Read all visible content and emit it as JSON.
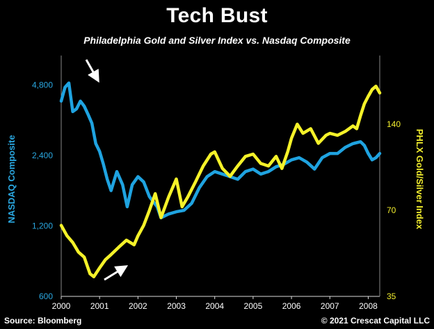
{
  "chart_data": {
    "type": "line",
    "title": "Tech Bust",
    "subtitle": "Philadelphia Gold and Silver Index vs. Nasdaq Composite",
    "x_ticks": [
      "2000",
      "2001",
      "2002",
      "2003",
      "2004",
      "2005",
      "2006",
      "2007",
      "2008"
    ],
    "xlim": [
      2000.0,
      2008.3
    ],
    "y_left": {
      "label": "NASDAQ Composite",
      "ticks": [
        "600",
        "1,200",
        "2,400",
        "4,800"
      ],
      "tick_values": [
        600,
        1200,
        2400,
        4800
      ],
      "scale": "log",
      "lim": [
        600,
        6000
      ]
    },
    "y_right": {
      "label": "PHLX Gold/Silver Index",
      "ticks": [
        "35",
        "70",
        "140"
      ],
      "tick_values": [
        35,
        70,
        140
      ],
      "scale": "log",
      "lim": [
        35,
        230
      ]
    },
    "series": [
      {
        "name": "NASDAQ Composite",
        "axis": "left",
        "color": "#1fa3e0",
        "x": [
          2000.0,
          2000.1,
          2000.2,
          2000.3,
          2000.4,
          2000.5,
          2000.6,
          2000.7,
          2000.8,
          2000.9,
          2001.0,
          2001.1,
          2001.2,
          2001.3,
          2001.45,
          2001.6,
          2001.72,
          2001.85,
          2002.0,
          2002.15,
          2002.3,
          2002.5,
          2002.6,
          2002.8,
          2003.0,
          2003.2,
          2003.4,
          2003.6,
          2003.8,
          2004.0,
          2004.2,
          2004.4,
          2004.6,
          2004.8,
          2005.0,
          2005.2,
          2005.4,
          2005.6,
          2005.8,
          2006.0,
          2006.2,
          2006.4,
          2006.6,
          2006.8,
          2007.0,
          2007.2,
          2007.4,
          2007.6,
          2007.8,
          2007.9,
          2008.0,
          2008.1,
          2008.2,
          2008.3
        ],
        "values": [
          4100,
          4700,
          4900,
          3700,
          3800,
          4100,
          3900,
          3600,
          3300,
          2700,
          2500,
          2200,
          1900,
          1700,
          2050,
          1800,
          1450,
          1800,
          1950,
          1850,
          1600,
          1450,
          1300,
          1350,
          1380,
          1400,
          1500,
          1750,
          1950,
          2050,
          2000,
          1950,
          1900,
          2050,
          2100,
          2000,
          2050,
          2150,
          2200,
          2300,
          2350,
          2250,
          2100,
          2350,
          2450,
          2450,
          2600,
          2700,
          2750,
          2650,
          2450,
          2300,
          2350,
          2450
        ]
      },
      {
        "name": "PHLX Gold/Silver Index",
        "axis": "right",
        "color": "#f5f229",
        "x": [
          2000.0,
          2000.15,
          2000.3,
          2000.45,
          2000.6,
          2000.75,
          2000.85,
          2001.0,
          2001.15,
          2001.3,
          2001.5,
          2001.7,
          2001.9,
          2002.0,
          2002.15,
          2002.3,
          2002.45,
          2002.6,
          2002.8,
          2003.0,
          2003.15,
          2003.3,
          2003.5,
          2003.7,
          2003.9,
          2004.0,
          2004.2,
          2004.4,
          2004.6,
          2004.8,
          2005.0,
          2005.2,
          2005.4,
          2005.6,
          2005.75,
          2005.9,
          2006.0,
          2006.15,
          2006.3,
          2006.5,
          2006.7,
          2006.9,
          2007.0,
          2007.2,
          2007.4,
          2007.6,
          2007.7,
          2007.8,
          2007.9,
          2008.0,
          2008.1,
          2008.2,
          2008.3
        ],
        "values": [
          62,
          57,
          54,
          50,
          48,
          42,
          41,
          44,
          47,
          49,
          52,
          55,
          53,
          57,
          62,
          70,
          80,
          66,
          78,
          90,
          72,
          78,
          88,
          100,
          110,
          112,
          98,
          92,
          100,
          108,
          110,
          102,
          100,
          108,
          98,
          112,
          125,
          140,
          130,
          135,
          120,
          128,
          130,
          128,
          132,
          138,
          135,
          150,
          165,
          175,
          185,
          190,
          180
        ]
      }
    ],
    "annotations": [
      "arrow-down-at-nasdaq-peak",
      "arrow-up-at-gold-trough"
    ],
    "grid": false,
    "legend": "none"
  },
  "footer": {
    "source": "Source: Bloomberg",
    "credit": "© 2021 Crescat Capital LLC"
  }
}
